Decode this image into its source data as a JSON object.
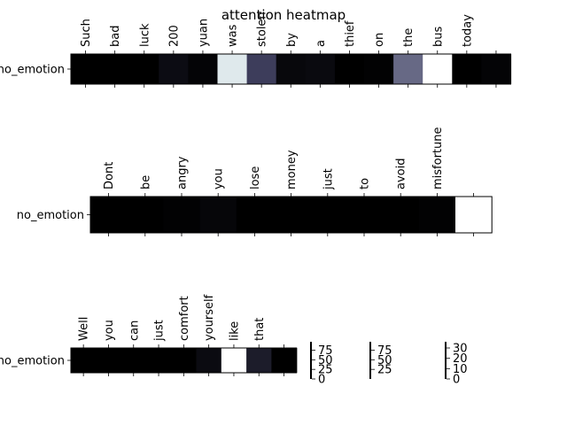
{
  "title": "attention heatmap",
  "chart_data": [
    {
      "type": "heatmap",
      "row_label": "no_emotion",
      "tokens": [
        "Such",
        "bad",
        "luck",
        "200",
        "yuan",
        "was",
        "stolen",
        "by",
        "a",
        "thief",
        "on",
        "the",
        "bus",
        "today",
        ""
      ],
      "values": [
        0,
        0,
        0,
        6,
        2,
        87,
        30,
        4,
        5,
        0,
        1,
        55,
        97,
        0,
        2
      ],
      "vmax": 97
    },
    {
      "type": "heatmap",
      "row_label": "no_emotion",
      "tokens": [
        "Dont",
        "be",
        "angry",
        "you",
        "lose",
        "money",
        "just",
        "to",
        "avoid",
        "misfortune",
        ""
      ],
      "values": [
        0,
        0,
        1,
        3,
        0,
        0,
        0,
        0,
        0,
        1,
        97
      ],
      "vmax": 97
    },
    {
      "type": "heatmap",
      "row_label": "no_emotion",
      "tokens": [
        "Well",
        "you",
        "can",
        "just",
        "comfort",
        "yourself",
        "like",
        "that",
        ""
      ],
      "values": [
        0,
        0,
        0,
        0,
        0,
        2,
        36,
        5,
        0
      ],
      "vmax": 36
    }
  ],
  "colorbars": [
    {
      "ticks": [
        "75",
        "50",
        "25",
        "0"
      ]
    },
    {
      "ticks": [
        "75",
        "50",
        "25"
      ]
    },
    {
      "ticks": [
        "30",
        "20",
        "10",
        "0"
      ]
    }
  ]
}
